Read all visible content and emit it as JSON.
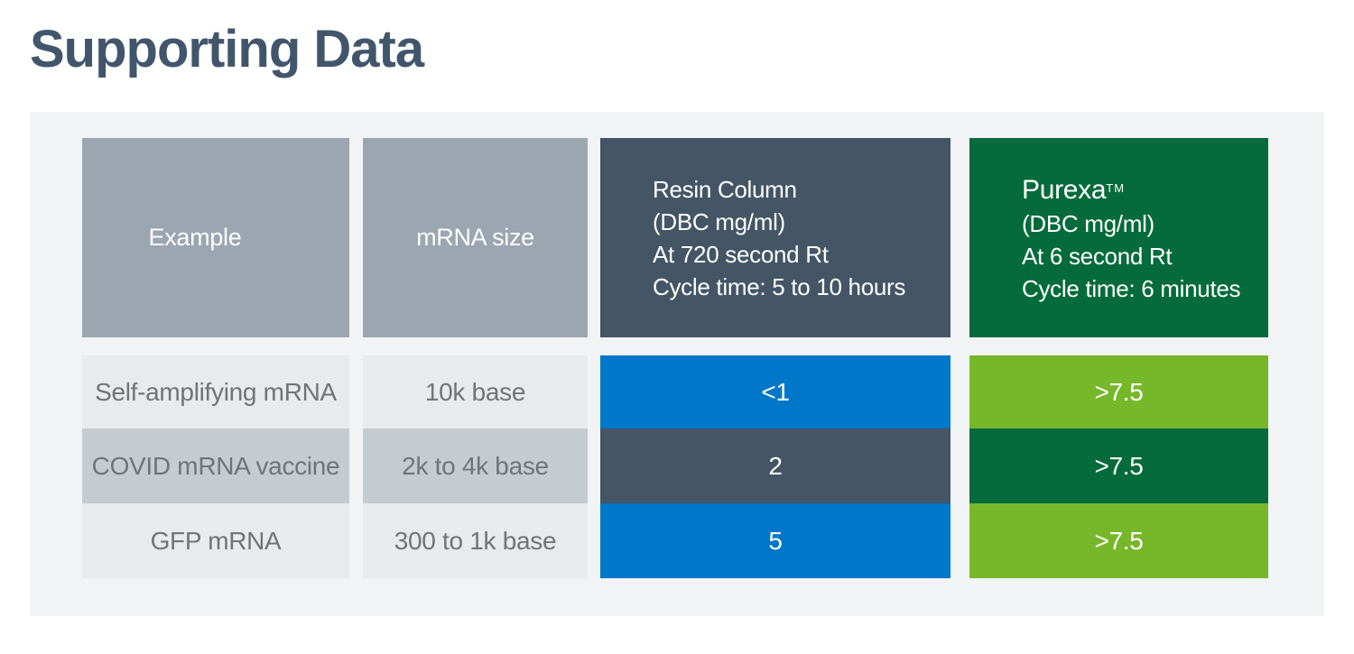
{
  "page": {
    "title": "Supporting Data"
  },
  "colors": {
    "title_text": "#42566B",
    "panel_bg": "#F2F3F5",
    "header_gray": "#9CA6B0",
    "slate": "#445565",
    "dark_green": "#066B3C",
    "blue": "#0077C8",
    "light_green": "#76B82A",
    "row_light_gray": "#E8EAEB",
    "row_mid_gray": "#C5CCD1",
    "body_text": "#6E7477",
    "header_text": "#FFFFFF"
  },
  "table": {
    "headers": [
      {
        "lines": [
          "Example"
        ]
      },
      {
        "lines": [
          "mRNA size"
        ]
      },
      {
        "lines": [
          "Resin Column",
          "(DBC mg/ml)",
          "At 720 second Rt",
          "Cycle time: 5 to 10 hours"
        ]
      },
      {
        "brand": "Purexa",
        "tm": "TM",
        "lines": [
          "(DBC mg/ml)",
          "At 6 second Rt",
          "Cycle time: 6 minutes"
        ]
      }
    ],
    "rows": [
      {
        "example": "Self-amplifying mRNA",
        "mrna_size": "10k base",
        "resin": "<1",
        "purexa": ">7.5"
      },
      {
        "example": "COVID mRNA vaccine",
        "mrna_size": "2k to 4k base",
        "resin": "2",
        "purexa": ">7.5"
      },
      {
        "example": "GFP mRNA",
        "mrna_size": "300 to 1k base",
        "resin": "5",
        "purexa": ">7.5"
      }
    ]
  },
  "chart_data": {
    "type": "table",
    "title": "Supporting Data",
    "columns": [
      "Example",
      "mRNA size",
      "Resin Column (DBC mg/ml) At 720 second Rt Cycle time: 5 to 10 hours",
      "Purexa™ (DBC mg/ml) At 6 second Rt Cycle time: 6 minutes"
    ],
    "rows": [
      [
        "Self-amplifying mRNA",
        "10k base",
        "<1",
        ">7.5"
      ],
      [
        "COVID mRNA vaccine",
        "2k to 4k base",
        "2",
        ">7.5"
      ],
      [
        "GFP mRNA",
        "300 to 1k base",
        "5",
        ">7.5"
      ]
    ],
    "notes": "DBC mg/ml values comparing Resin Column (720 second Rt, 5-10 hour cycle) vs Purexa (6 second Rt, 6 minute cycle)"
  }
}
